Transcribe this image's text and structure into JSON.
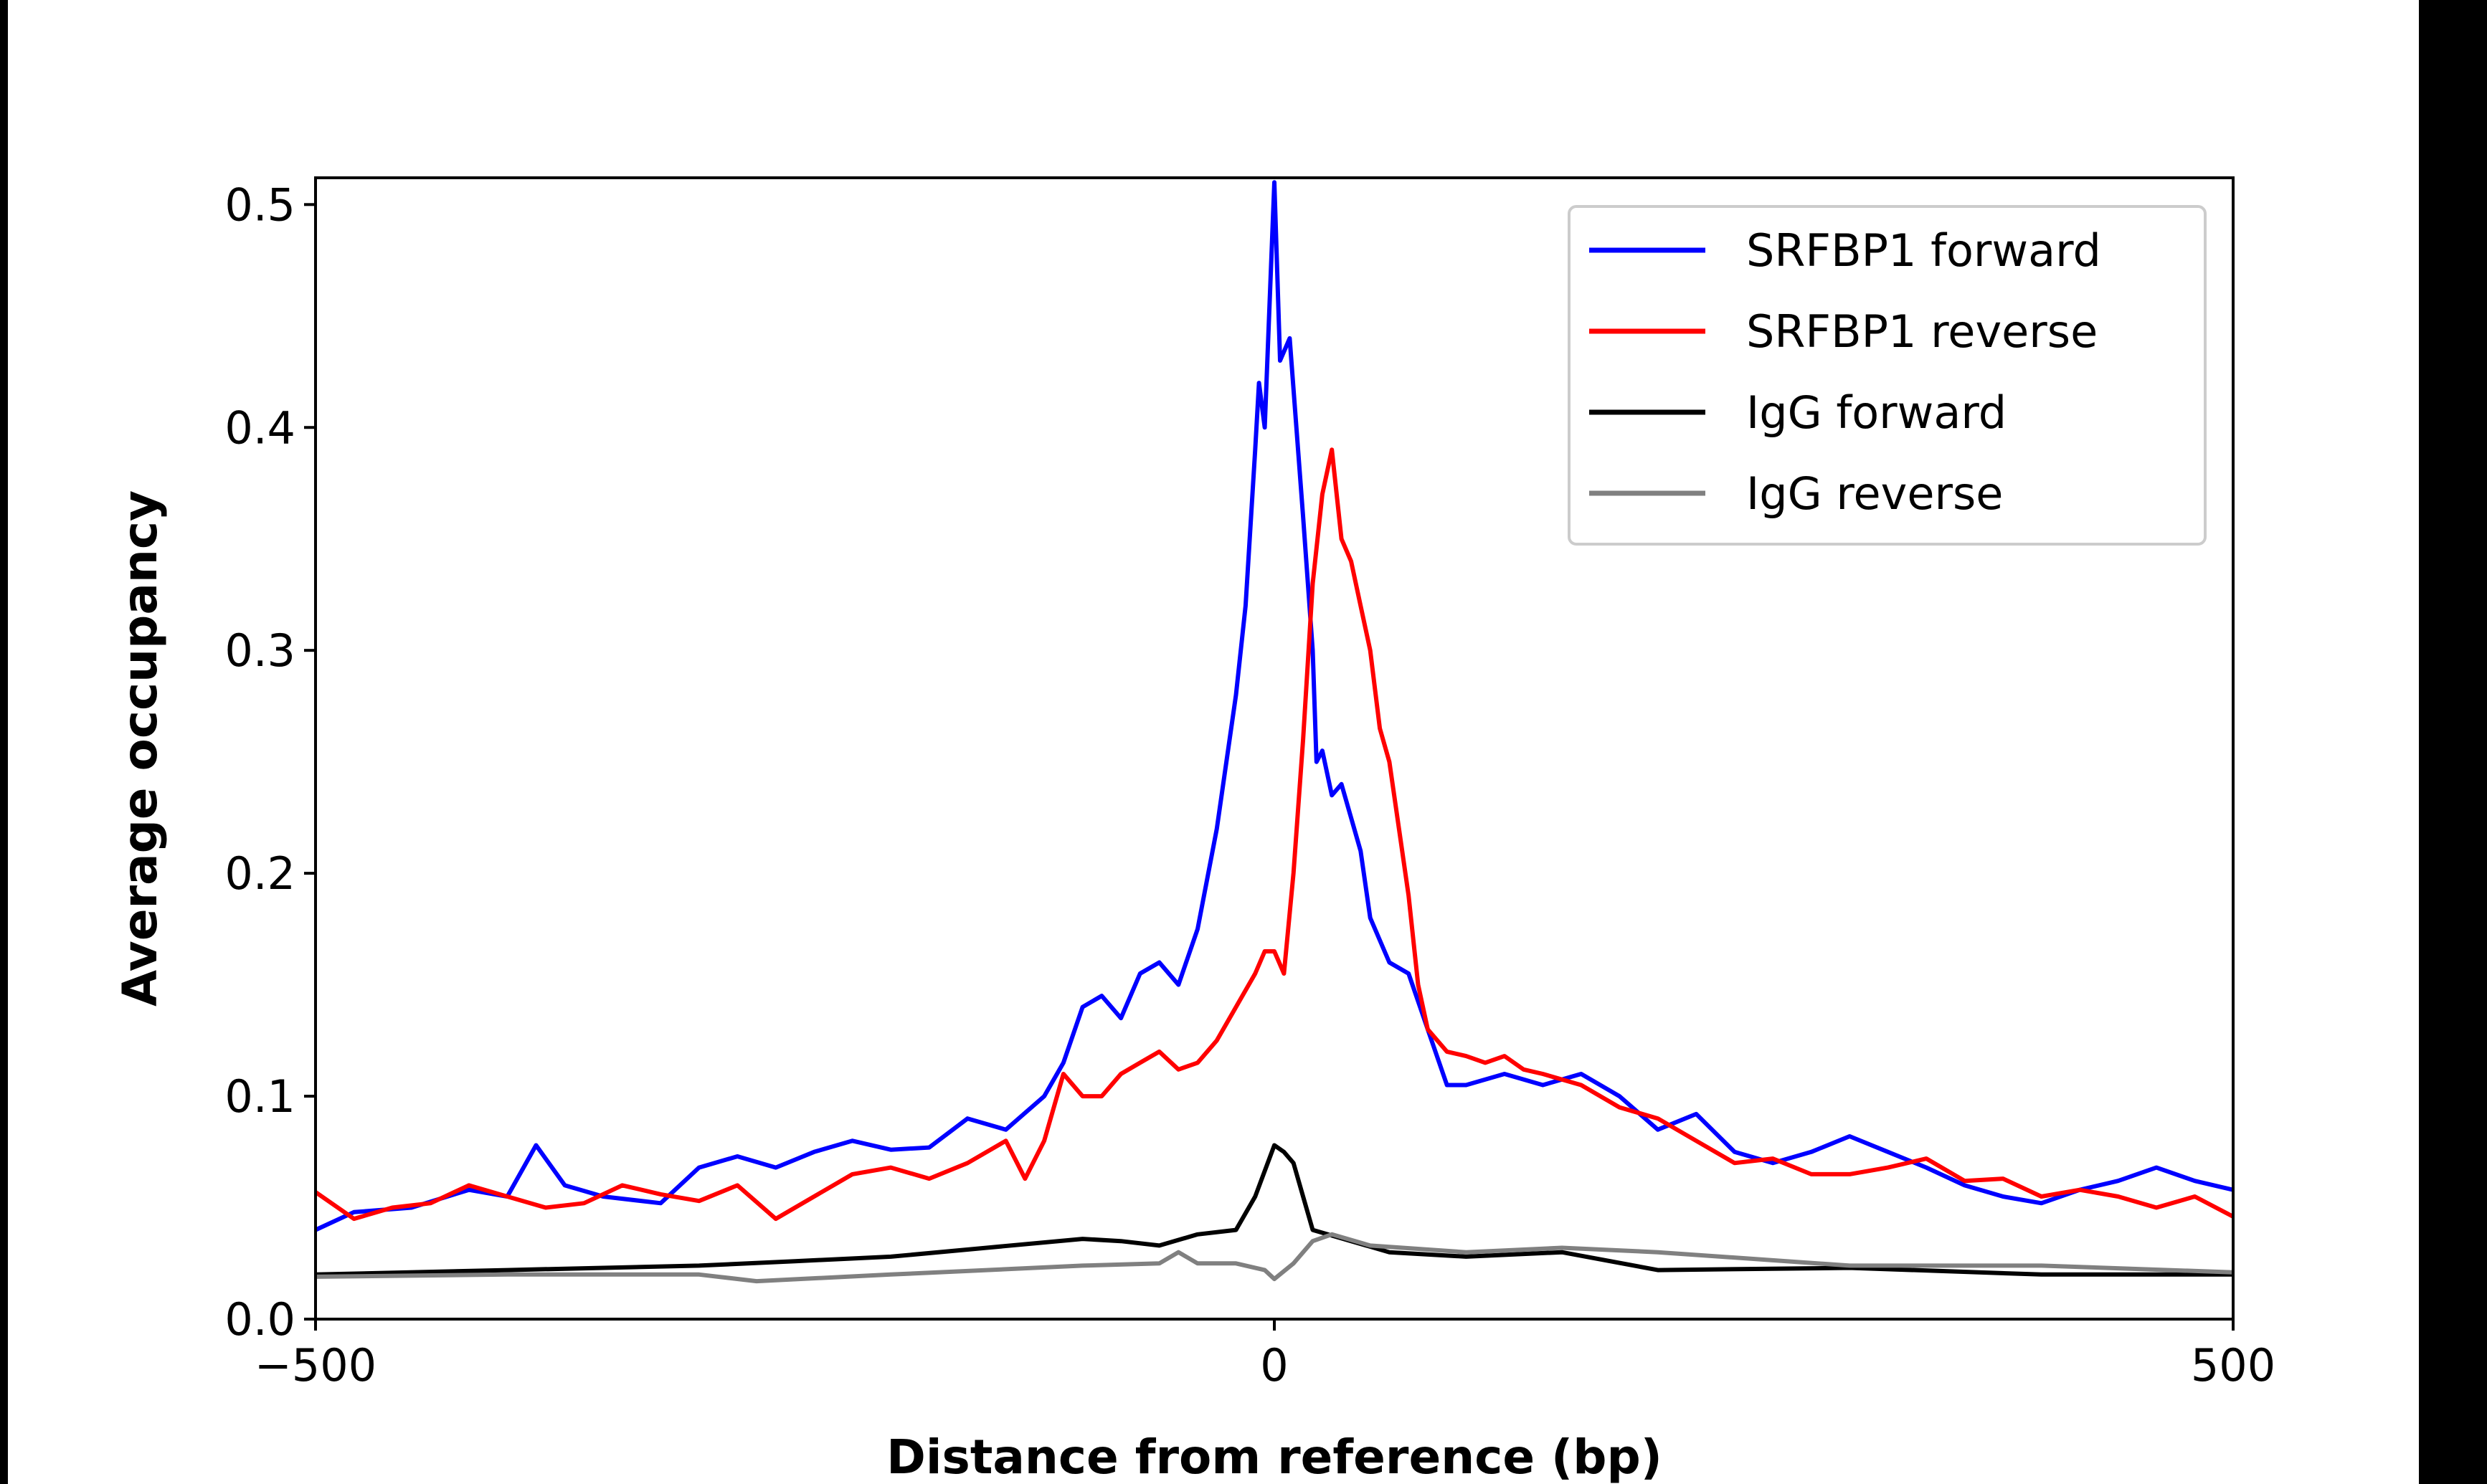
{
  "chart_data": {
    "type": "line",
    "title": "",
    "xlabel": "Distance from reference (bp)",
    "ylabel": "Average occupancy",
    "xlim": [
      -500,
      500
    ],
    "ylim": [
      0.0,
      0.512
    ],
    "xticks": [
      -500,
      0,
      500
    ],
    "xtick_labels": [
      "−500",
      "0",
      "500"
    ],
    "yticks": [
      0.0,
      0.1,
      0.2,
      0.3,
      0.4,
      0.5
    ],
    "ytick_labels": [
      "0.0",
      "0.1",
      "0.2",
      "0.3",
      "0.4",
      "0.5"
    ],
    "grid": false,
    "legend_placement": "top-right",
    "series": [
      {
        "name": "SRFBP1 forward",
        "color": "#0000ff",
        "x": [
          -500,
          -480,
          -450,
          -420,
          -400,
          -385,
          -370,
          -350,
          -320,
          -300,
          -280,
          -260,
          -240,
          -220,
          -200,
          -180,
          -160,
          -140,
          -120,
          -110,
          -100,
          -90,
          -80,
          -70,
          -60,
          -50,
          -40,
          -30,
          -20,
          -15,
          -10,
          -8,
          -5,
          0,
          3,
          8,
          15,
          20,
          22,
          25,
          30,
          35,
          45,
          50,
          60,
          70,
          80,
          90,
          100,
          120,
          140,
          160,
          180,
          200,
          220,
          240,
          260,
          280,
          300,
          320,
          340,
          360,
          380,
          400,
          420,
          440,
          460,
          480,
          500
        ],
        "y": [
          0.04,
          0.048,
          0.05,
          0.058,
          0.055,
          0.078,
          0.06,
          0.055,
          0.052,
          0.068,
          0.073,
          0.068,
          0.075,
          0.08,
          0.076,
          0.077,
          0.09,
          0.085,
          0.1,
          0.115,
          0.14,
          0.145,
          0.135,
          0.155,
          0.16,
          0.15,
          0.175,
          0.22,
          0.28,
          0.32,
          0.39,
          0.42,
          0.4,
          0.51,
          0.43,
          0.44,
          0.36,
          0.3,
          0.25,
          0.255,
          0.235,
          0.24,
          0.21,
          0.18,
          0.16,
          0.155,
          0.13,
          0.105,
          0.105,
          0.11,
          0.105,
          0.11,
          0.1,
          0.085,
          0.092,
          0.075,
          0.07,
          0.075,
          0.082,
          0.075,
          0.068,
          0.06,
          0.055,
          0.052,
          0.058,
          0.062,
          0.068,
          0.062,
          0.058
        ]
      },
      {
        "name": "SRFBP1 reverse",
        "color": "#ff0000",
        "x": [
          -500,
          -480,
          -460,
          -440,
          -420,
          -400,
          -380,
          -360,
          -340,
          -320,
          -300,
          -280,
          -260,
          -240,
          -220,
          -200,
          -180,
          -160,
          -140,
          -130,
          -120,
          -110,
          -100,
          -90,
          -80,
          -70,
          -60,
          -50,
          -40,
          -30,
          -20,
          -10,
          -5,
          0,
          5,
          10,
          15,
          20,
          25,
          30,
          35,
          40,
          45,
          50,
          55,
          60,
          65,
          70,
          75,
          80,
          90,
          100,
          110,
          120,
          130,
          140,
          160,
          180,
          200,
          220,
          240,
          260,
          280,
          300,
          320,
          340,
          360,
          380,
          400,
          420,
          440,
          460,
          480,
          500
        ],
        "y": [
          0.057,
          0.045,
          0.05,
          0.052,
          0.06,
          0.055,
          0.05,
          0.052,
          0.06,
          0.056,
          0.053,
          0.06,
          0.045,
          0.055,
          0.065,
          0.068,
          0.063,
          0.07,
          0.08,
          0.063,
          0.08,
          0.11,
          0.1,
          0.1,
          0.11,
          0.115,
          0.12,
          0.112,
          0.115,
          0.125,
          0.14,
          0.155,
          0.165,
          0.165,
          0.155,
          0.2,
          0.26,
          0.33,
          0.37,
          0.39,
          0.35,
          0.34,
          0.32,
          0.3,
          0.265,
          0.25,
          0.22,
          0.19,
          0.15,
          0.13,
          0.12,
          0.118,
          0.115,
          0.118,
          0.112,
          0.11,
          0.105,
          0.095,
          0.09,
          0.08,
          0.07,
          0.072,
          0.065,
          0.065,
          0.068,
          0.072,
          0.062,
          0.063,
          0.055,
          0.058,
          0.055,
          0.05,
          0.055,
          0.046
        ]
      },
      {
        "name": "IgG forward",
        "color": "#000000",
        "x": [
          -500,
          -400,
          -300,
          -250,
          -200,
          -150,
          -100,
          -80,
          -60,
          -40,
          -20,
          -10,
          0,
          5,
          10,
          15,
          20,
          40,
          60,
          100,
          150,
          200,
          300,
          400,
          500
        ],
        "y": [
          0.02,
          0.022,
          0.024,
          0.026,
          0.028,
          0.032,
          0.036,
          0.035,
          0.033,
          0.038,
          0.04,
          0.055,
          0.078,
          0.075,
          0.07,
          0.055,
          0.04,
          0.035,
          0.03,
          0.028,
          0.03,
          0.022,
          0.023,
          0.02,
          0.02
        ]
      },
      {
        "name": "IgG reverse",
        "color": "#808080",
        "x": [
          -500,
          -400,
          -300,
          -270,
          -200,
          -100,
          -60,
          -50,
          -40,
          -20,
          -5,
          0,
          10,
          20,
          30,
          50,
          100,
          150,
          200,
          300,
          400,
          500
        ],
        "y": [
          0.019,
          0.02,
          0.02,
          0.017,
          0.02,
          0.024,
          0.025,
          0.03,
          0.025,
          0.025,
          0.022,
          0.018,
          0.025,
          0.035,
          0.038,
          0.033,
          0.03,
          0.032,
          0.03,
          0.024,
          0.024,
          0.021
        ]
      }
    ]
  }
}
